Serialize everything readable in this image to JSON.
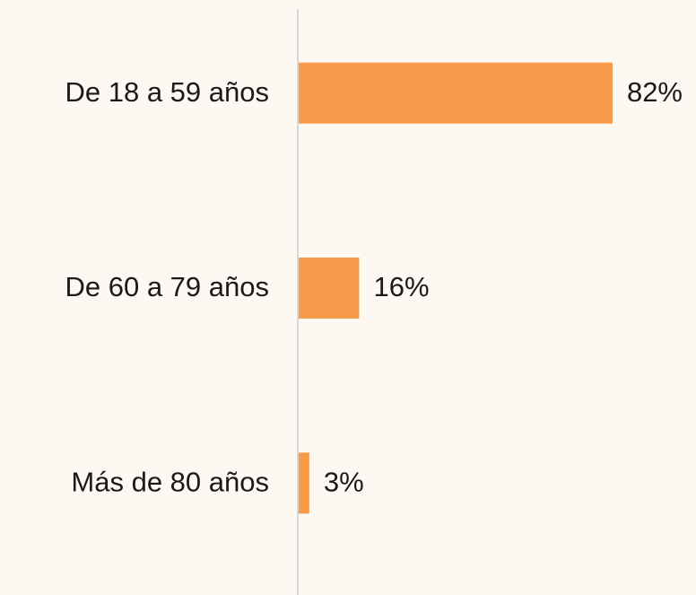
{
  "chart_data": {
    "type": "barh",
    "categories": [
      "De 18 a 59 años",
      "De 60 a 79 años",
      "Más de 80 años"
    ],
    "values": [
      82,
      16,
      3
    ],
    "value_labels": [
      "82%",
      "16%",
      "3%"
    ],
    "color": "#f79a4a"
  }
}
